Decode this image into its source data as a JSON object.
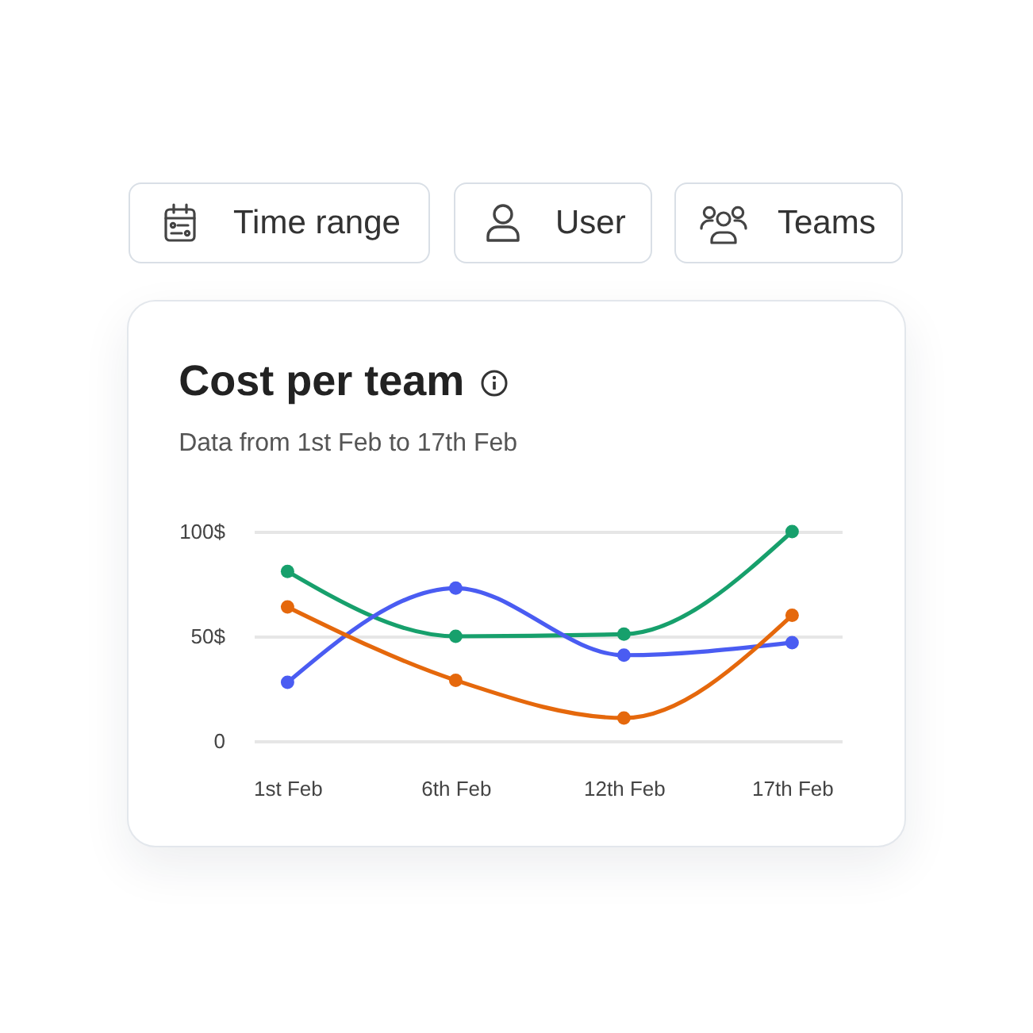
{
  "chart_data": {
    "type": "line",
    "title": "Cost per team",
    "subtitle": "Data from 1st Feb to 17th Feb",
    "annotations": [
      "Time range",
      "User",
      "Teams"
    ],
    "categories": [
      "1st Feb",
      "6th Feb",
      "12th Feb",
      "17th Feb"
    ],
    "series": [
      {
        "color": "#17a06c",
        "values": [
          81,
          50,
          51,
          100
        ]
      },
      {
        "color": "#4a5cf2",
        "values": [
          28,
          73,
          41,
          47
        ]
      },
      {
        "color": "#e5680c",
        "values": [
          64,
          29,
          11,
          60
        ]
      }
    ],
    "ylim": [
      0,
      100
    ],
    "yticks": [
      0,
      {
        "value": 50,
        "label": "50$"
      },
      {
        "value": 100,
        "label": "100$"
      }
    ],
    "grid": "y",
    "marker": "circle",
    "line_style": "solid"
  }
}
